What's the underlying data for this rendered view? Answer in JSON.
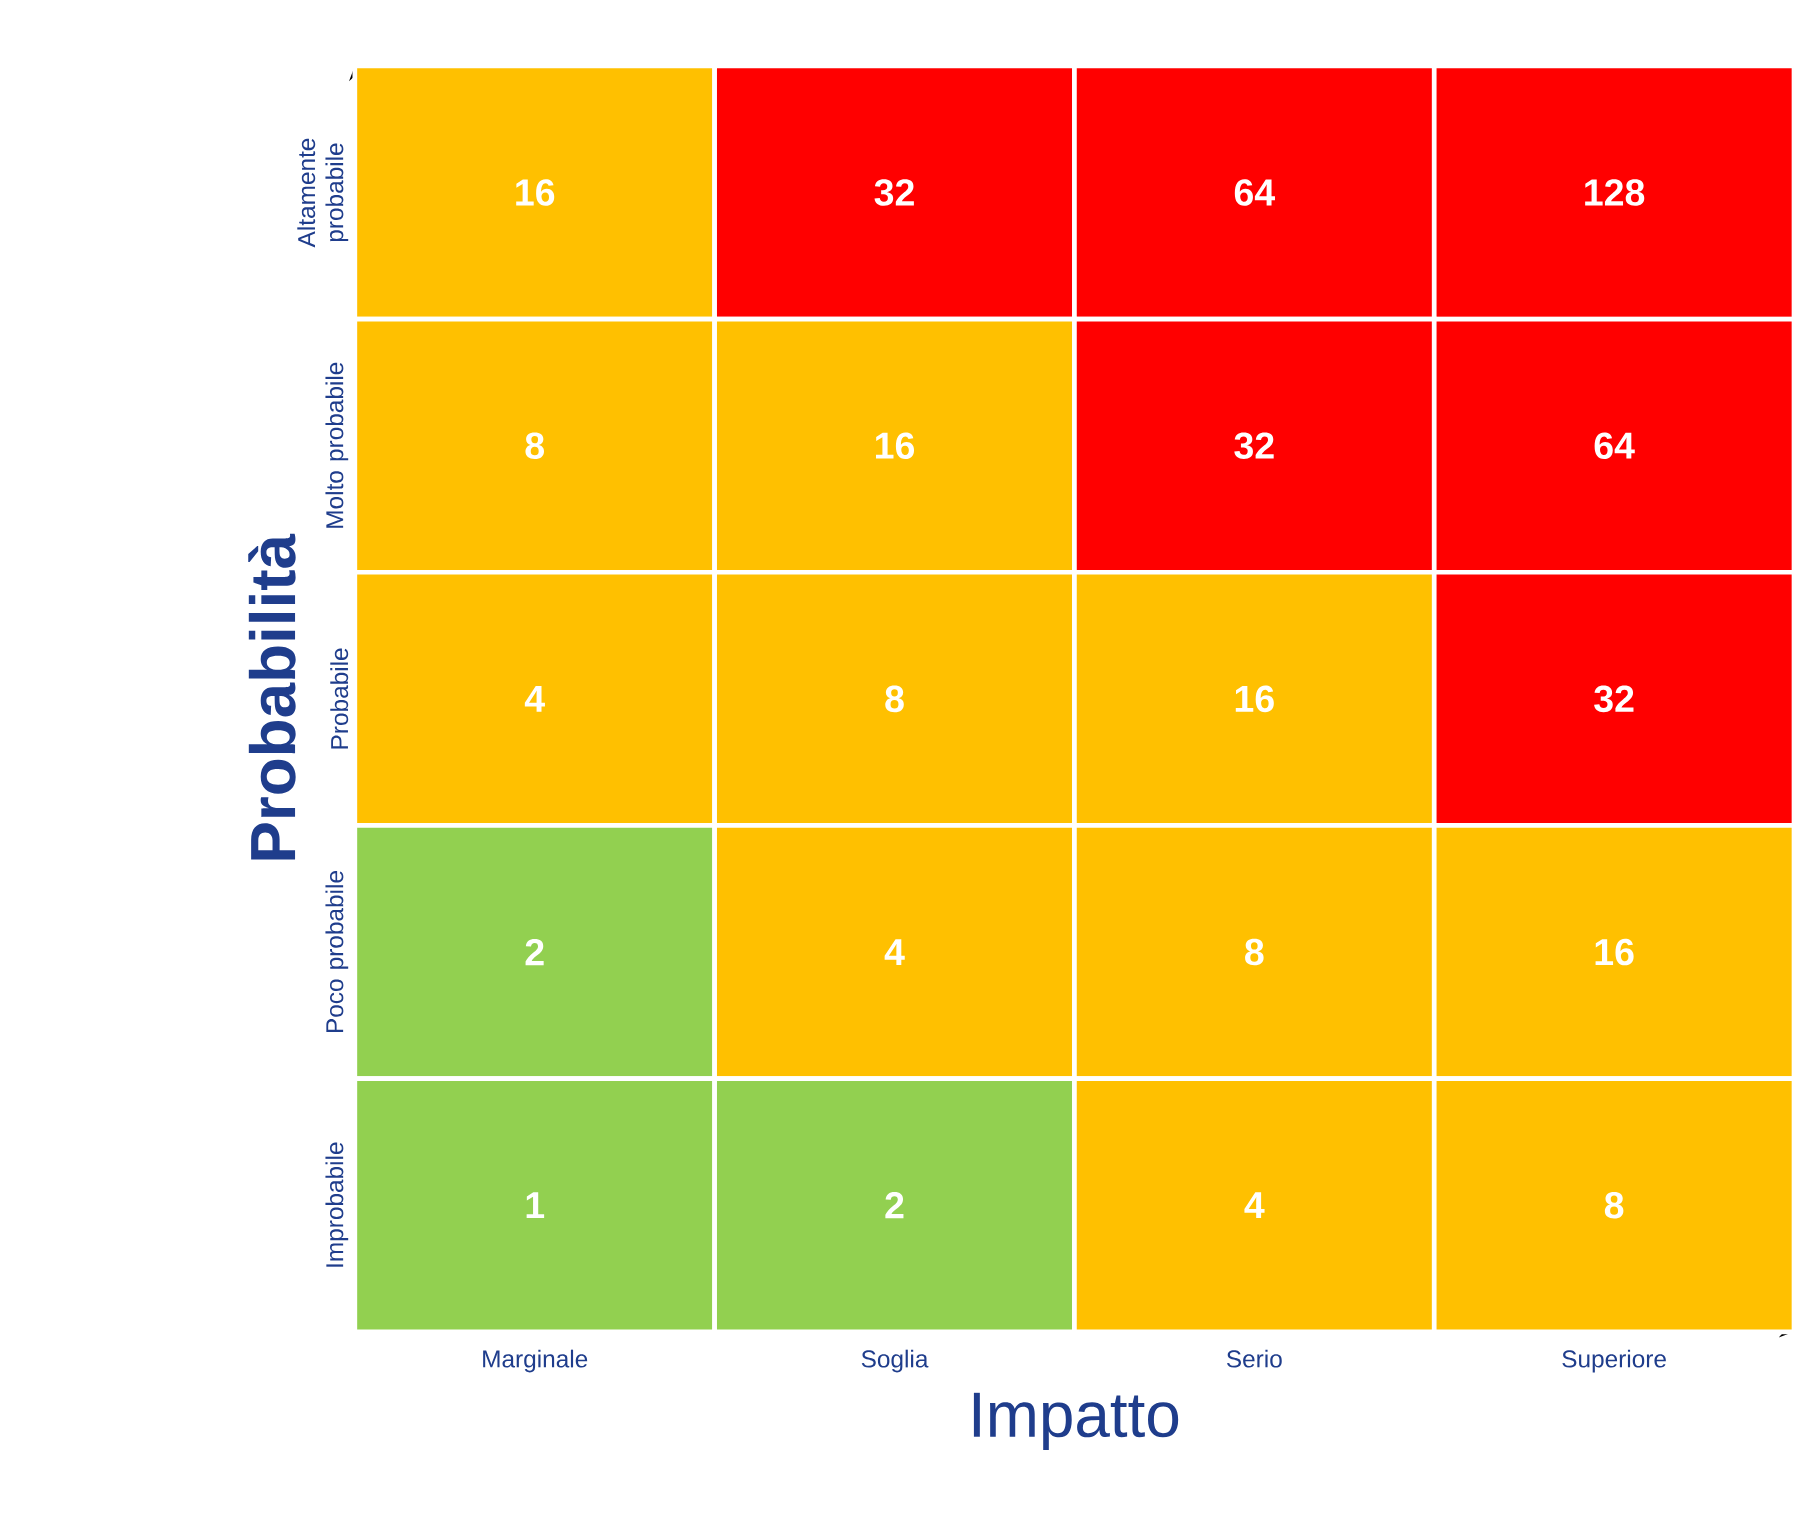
{
  "chart_data": {
    "type": "heatmap",
    "xlabel": "Impatto",
    "ylabel": "Probabilità",
    "categories": [
      "Marginale",
      "Soglia",
      "Serio",
      "Superiore"
    ],
    "y_categories": [
      "Altamente probabile",
      "Molto probabile",
      "Probabile",
      "Poco probabile",
      "Improbabile"
    ],
    "cells": [
      [
        16,
        32,
        64,
        128
      ],
      [
        8,
        16,
        32,
        64
      ],
      [
        4,
        8,
        16,
        32
      ],
      [
        2,
        4,
        8,
        16
      ],
      [
        1,
        2,
        4,
        8
      ]
    ],
    "colors": [
      [
        "#ffc000",
        "#ff0000",
        "#ff0000",
        "#ff0000"
      ],
      [
        "#ffc000",
        "#ffc000",
        "#ff0000",
        "#ff0000"
      ],
      [
        "#ffc000",
        "#ffc000",
        "#ffc000",
        "#ff0000"
      ],
      [
        "#92d050",
        "#ffc000",
        "#ffc000",
        "#ffc000"
      ],
      [
        "#92d050",
        "#92d050",
        "#ffc000",
        "#ffc000"
      ]
    ],
    "data_labels": true
  }
}
